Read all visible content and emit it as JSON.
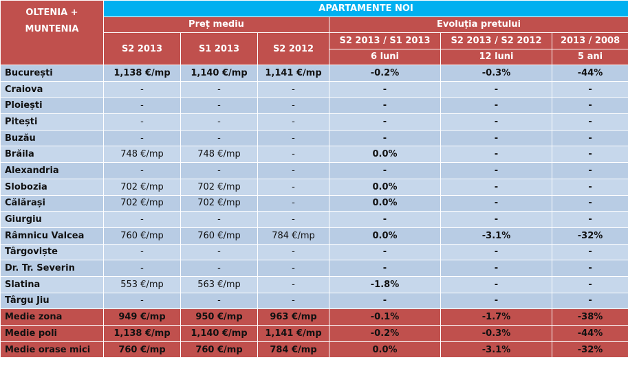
{
  "header": {
    "region": [
      "OLTENIA +",
      "MUNTENIA"
    ],
    "title": "APARTAMENTE NOI",
    "price_group": "Preț mediu",
    "evolution_group": "Evoluția pretului",
    "price_columns": [
      "S2 2013",
      "S1 2013",
      "S2 2012"
    ],
    "evolution_columns": [
      {
        "period": "S2 2013  / S1 2013",
        "span": "6 luni"
      },
      {
        "period": "S2 2013  / S2 2012",
        "span": "12 luni"
      },
      {
        "period": "2013  / 2008",
        "span": "5 ani"
      }
    ]
  },
  "table": {
    "rows": [
      [
        "București",
        "1,138 €/mp",
        "1,140 €/mp",
        "1,141 €/mp",
        "-0.2%",
        "-0.3%",
        "-44%"
      ],
      [
        "Craiova",
        "-",
        "-",
        "-",
        "-",
        "-",
        "-"
      ],
      [
        "Ploiești",
        "-",
        "-",
        "-",
        "-",
        "-",
        "-"
      ],
      [
        "Pitești",
        "-",
        "-",
        "-",
        "-",
        "-",
        "-"
      ],
      [
        "Buzău",
        "-",
        "-",
        "-",
        "-",
        "-",
        "-"
      ],
      [
        "Brăila",
        "748 €/mp",
        "748 €/mp",
        "-",
        "0.0%",
        "-",
        "-"
      ],
      [
        "Alexandria",
        "-",
        "-",
        "-",
        "-",
        "-",
        "-"
      ],
      [
        "Slobozia",
        "702 €/mp",
        "702 €/mp",
        "-",
        "0.0%",
        "-",
        "-"
      ],
      [
        "Călărași",
        "702 €/mp",
        "702 €/mp",
        "-",
        "0.0%",
        "-",
        "-"
      ],
      [
        "Giurgiu",
        "-",
        "-",
        "-",
        "-",
        "-",
        "-"
      ],
      [
        "Râmnicu Valcea",
        "760 €/mp",
        "760 €/mp",
        "784 €/mp",
        "0.0%",
        "-3.1%",
        "-32%"
      ],
      [
        "Târgoviște",
        "-",
        "-",
        "-",
        "-",
        "-",
        "-"
      ],
      [
        "Dr. Tr. Severin",
        "-",
        "-",
        "-",
        "-",
        "-",
        "-"
      ],
      [
        "Slatina",
        "553 €/mp",
        "563 €/mp",
        "-",
        "-1.8%",
        "-",
        "-"
      ],
      [
        "Târgu Jiu",
        "-",
        "-",
        "-",
        "-",
        "-",
        "-"
      ]
    ],
    "summary_rows": [
      [
        "Medie zona",
        "949 €/mp",
        "950 €/mp",
        "963 €/mp",
        "-0.1%",
        "-1.7%",
        "-38%"
      ],
      [
        "Medie poli",
        "1,138 €/mp",
        "1,140 €/mp",
        "1,141 €/mp",
        "-0.2%",
        "-0.3%",
        "-44%"
      ],
      [
        "Medie orase mici",
        "760 €/mp",
        "760 €/mp",
        "784 €/mp",
        "0.0%",
        "-3.1%",
        "-32%"
      ]
    ]
  }
}
